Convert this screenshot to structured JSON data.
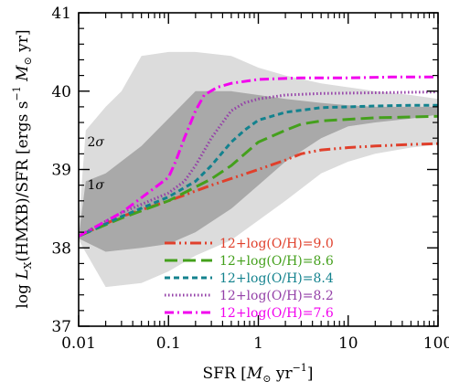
{
  "chart_data": {
    "type": "line",
    "xscale": "log",
    "xlim": [
      0.01,
      100
    ],
    "ylim": [
      37,
      41
    ],
    "xticks": [
      {
        "value": 0.01,
        "label": "0.01"
      },
      {
        "value": 0.1,
        "label": "0.1"
      },
      {
        "value": 1,
        "label": "1"
      },
      {
        "value": 10,
        "label": "10"
      },
      {
        "value": 100,
        "label": "100"
      }
    ],
    "yticks": [
      {
        "value": 37,
        "label": "37"
      },
      {
        "value": 38,
        "label": "38"
      },
      {
        "value": 39,
        "label": "39"
      },
      {
        "value": 40,
        "label": "40"
      },
      {
        "value": 41,
        "label": "41"
      }
    ],
    "xlabel_parts": {
      "prefix": "SFR [",
      "msun": "M",
      "sun": "⊙",
      "suffix": " yr",
      "exp": "−1",
      "close": "]"
    },
    "ylabel_parts": {
      "prefix": "log ",
      "L": "L",
      "sub": "X",
      "mid": "(HMXB)/SFR [ergs s",
      "exp": "−1",
      "space": " ",
      "msun": "M",
      "sun": "⊙",
      "suffix": " yr]"
    },
    "bands": [
      {
        "label_parts": {
          "num": "2",
          "sym": "σ"
        },
        "label_at": [
          0.0125,
          39.3
        ],
        "color": "#dcdcdc",
        "upper": [
          [
            0.01,
            38.3
          ],
          [
            0.012,
            39.5
          ],
          [
            0.02,
            39.8
          ],
          [
            0.03,
            40.0
          ],
          [
            0.05,
            40.45
          ],
          [
            0.1,
            40.5
          ],
          [
            0.2,
            40.5
          ],
          [
            0.5,
            40.45
          ],
          [
            1,
            40.3
          ],
          [
            2,
            40.2
          ],
          [
            5,
            40.1
          ],
          [
            10,
            40.05
          ],
          [
            20,
            40.0
          ],
          [
            50,
            39.95
          ],
          [
            100,
            39.9
          ]
        ],
        "lower": [
          [
            0.01,
            38.1
          ],
          [
            0.02,
            37.5
          ],
          [
            0.05,
            37.55
          ],
          [
            0.1,
            37.7
          ],
          [
            0.2,
            37.9
          ],
          [
            0.5,
            38.1
          ],
          [
            1,
            38.35
          ],
          [
            2,
            38.6
          ],
          [
            5,
            38.95
          ],
          [
            10,
            39.1
          ],
          [
            20,
            39.2
          ],
          [
            50,
            39.28
          ],
          [
            100,
            39.32
          ]
        ]
      },
      {
        "label_parts": {
          "num": "1",
          "sym": "σ"
        },
        "label_at": [
          0.0125,
          38.75
        ],
        "color": "#a9a9a9",
        "upper": [
          [
            0.01,
            38.15
          ],
          [
            0.012,
            38.85
          ],
          [
            0.02,
            38.95
          ],
          [
            0.05,
            39.3
          ],
          [
            0.1,
            39.65
          ],
          [
            0.2,
            40.0
          ],
          [
            0.5,
            40.0
          ],
          [
            1,
            39.95
          ],
          [
            2,
            39.9
          ],
          [
            5,
            39.85
          ],
          [
            10,
            39.82
          ],
          [
            20,
            39.8
          ],
          [
            50,
            39.8
          ],
          [
            100,
            39.8
          ]
        ],
        "lower": [
          [
            0.01,
            38.12
          ],
          [
            0.02,
            37.95
          ],
          [
            0.05,
            38.0
          ],
          [
            0.1,
            38.05
          ],
          [
            0.2,
            38.2
          ],
          [
            0.5,
            38.5
          ],
          [
            1,
            38.8
          ],
          [
            2,
            39.1
          ],
          [
            5,
            39.4
          ],
          [
            10,
            39.55
          ],
          [
            20,
            39.6
          ],
          [
            50,
            39.65
          ],
          [
            100,
            39.7
          ]
        ]
      }
    ],
    "series": [
      {
        "name": "12+log(O/H)=9.0",
        "color": "#e0402c",
        "dash": "dashdotdot",
        "points": [
          [
            0.01,
            38.15
          ],
          [
            0.03,
            38.4
          ],
          [
            0.1,
            38.6
          ],
          [
            0.3,
            38.8
          ],
          [
            1,
            39.0
          ],
          [
            2,
            39.12
          ],
          [
            3,
            39.2
          ],
          [
            5,
            39.25
          ],
          [
            10,
            39.28
          ],
          [
            20,
            39.3
          ],
          [
            50,
            39.32
          ],
          [
            100,
            39.33
          ]
        ]
      },
      {
        "name": "12+log(O/H)=8.6",
        "color": "#44a01c",
        "dash": "longdash",
        "points": [
          [
            0.01,
            38.15
          ],
          [
            0.03,
            38.38
          ],
          [
            0.1,
            38.6
          ],
          [
            0.3,
            38.88
          ],
          [
            0.5,
            39.05
          ],
          [
            1,
            39.35
          ],
          [
            2,
            39.5
          ],
          [
            3,
            39.58
          ],
          [
            5,
            39.62
          ],
          [
            10,
            39.64
          ],
          [
            20,
            39.66
          ],
          [
            50,
            39.67
          ],
          [
            100,
            39.68
          ]
        ]
      },
      {
        "name": "12+log(O/H)=8.4",
        "color": "#13828e",
        "dash": "dash",
        "points": [
          [
            0.01,
            38.15
          ],
          [
            0.03,
            38.4
          ],
          [
            0.1,
            38.65
          ],
          [
            0.2,
            38.85
          ],
          [
            0.3,
            39.05
          ],
          [
            0.5,
            39.35
          ],
          [
            0.7,
            39.5
          ],
          [
            1,
            39.63
          ],
          [
            2,
            39.73
          ],
          [
            5,
            39.79
          ],
          [
            10,
            39.8
          ],
          [
            20,
            39.81
          ],
          [
            50,
            39.82
          ],
          [
            100,
            39.82
          ]
        ]
      },
      {
        "name": "12+log(O/H)=8.2",
        "color": "#9440a8",
        "dash": "dot",
        "points": [
          [
            0.01,
            38.15
          ],
          [
            0.03,
            38.45
          ],
          [
            0.1,
            38.7
          ],
          [
            0.15,
            38.85
          ],
          [
            0.2,
            39.05
          ],
          [
            0.3,
            39.4
          ],
          [
            0.4,
            39.6
          ],
          [
            0.5,
            39.75
          ],
          [
            0.7,
            39.85
          ],
          [
            1,
            39.9
          ],
          [
            2,
            39.95
          ],
          [
            5,
            39.97
          ],
          [
            20,
            39.98
          ],
          [
            100,
            39.99
          ]
        ]
      },
      {
        "name": "12+log(O/H)=7.6",
        "color": "#f200ee",
        "dash": "dashdot",
        "points": [
          [
            0.01,
            38.15
          ],
          [
            0.03,
            38.45
          ],
          [
            0.1,
            38.9
          ],
          [
            0.12,
            39.1
          ],
          [
            0.15,
            39.4
          ],
          [
            0.2,
            39.75
          ],
          [
            0.25,
            39.95
          ],
          [
            0.35,
            40.05
          ],
          [
            0.5,
            40.1
          ],
          [
            1,
            40.15
          ],
          [
            3,
            40.17
          ],
          [
            10,
            40.17
          ],
          [
            30,
            40.18
          ],
          [
            100,
            40.18
          ]
        ]
      }
    ],
    "legend": {
      "placement": "bottom-right"
    },
    "grid": false
  }
}
